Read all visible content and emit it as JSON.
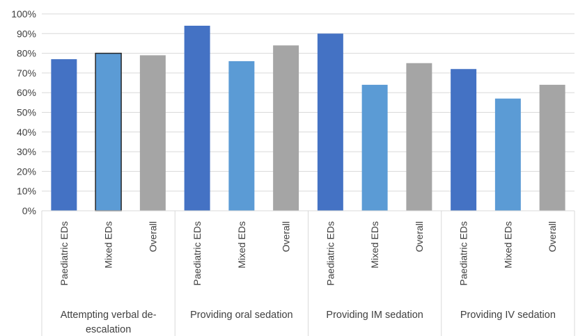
{
  "chart_data": {
    "type": "bar",
    "groups": [
      {
        "label_lines": [
          "Attempting verbal de-",
          "escalation"
        ],
        "categories": [
          "Paediatric EDs",
          "Mixed EDs",
          "Overall"
        ],
        "values": [
          77,
          80,
          79
        ]
      },
      {
        "label_lines": [
          "Providing oral sedation"
        ],
        "categories": [
          "Paediatric EDs",
          "Mixed EDs",
          "Overall"
        ],
        "values": [
          94,
          76,
          84
        ]
      },
      {
        "label_lines": [
          "Providing IM sedation"
        ],
        "categories": [
          "Paediatric EDs",
          "Mixed EDs",
          "Overall"
        ],
        "values": [
          90,
          64,
          75
        ]
      },
      {
        "label_lines": [
          "Providing IV sedation"
        ],
        "categories": [
          "Paediatric EDs",
          "Mixed EDs",
          "Overall"
        ],
        "values": [
          72,
          57,
          64
        ]
      }
    ],
    "y_ticks": [
      "0%",
      "10%",
      "20%",
      "30%",
      "40%",
      "50%",
      "60%",
      "70%",
      "80%",
      "90%",
      "100%"
    ],
    "ylim": [
      0,
      100
    ],
    "grid": true,
    "legend": "none",
    "colors": {
      "Paediatric EDs": "#4472C4",
      "Mixed EDs": "#5B9BD5",
      "Overall": "#A5A5A5"
    },
    "highlighted_bar_outline": "#262626"
  }
}
